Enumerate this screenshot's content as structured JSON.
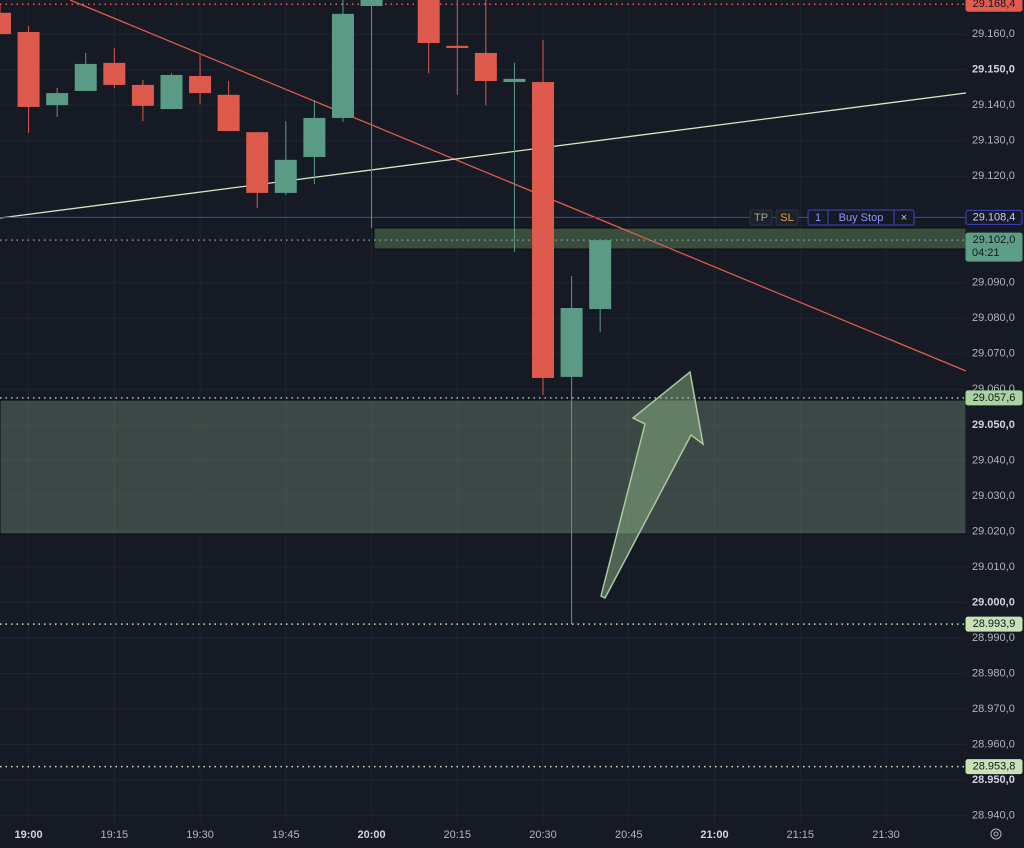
{
  "chart_data": {
    "type": "candlestick",
    "x": [
      "18:55",
      "19:00",
      "19:05",
      "19:10",
      "19:15",
      "19:20",
      "19:25",
      "19:30",
      "19:35",
      "19:40",
      "19:45",
      "19:50",
      "19:55",
      "20:00",
      "20:10",
      "20:15",
      "20:20",
      "20:25",
      "20:30",
      "20:35",
      "20:40"
    ],
    "open": [
      29.166,
      29.1606,
      29.14,
      29.144,
      29.1519,
      29.1457,
      29.1389,
      29.1482,
      29.1429,
      29.1324,
      29.1153,
      29.1254,
      29.1364,
      29.1679,
      29.17,
      29.1567,
      29.1547,
      29.1465,
      29.1465,
      29.0635,
      29.0826
    ],
    "high": [
      29.1684,
      29.1623,
      29.1448,
      29.1547,
      29.1561,
      29.1471,
      29.149,
      29.1541,
      29.1468,
      29.1324,
      29.1355,
      29.1414,
      29.17,
      29.171,
      29.171,
      29.17,
      29.17,
      29.1519,
      29.1583,
      29.0919,
      29.102
    ],
    "low": [
      29.16,
      29.1322,
      29.1367,
      29.144,
      29.1448,
      29.1355,
      29.1389,
      29.1403,
      29.1327,
      29.111,
      29.1147,
      29.1178,
      29.1353,
      29.1054,
      29.149,
      29.1429,
      29.14,
      29.0987,
      29.0584,
      28.9939,
      29.0761
    ],
    "close": [
      29.16,
      29.1395,
      29.1434,
      29.1516,
      29.1457,
      29.1398,
      29.1485,
      29.1434,
      29.1327,
      29.1153,
      29.1246,
      29.1364,
      29.1657,
      29.17,
      29.1575,
      29.1561,
      29.1468,
      29.1474,
      29.0632,
      29.0829,
      29.102
    ],
    "up_color": "#5b9a84",
    "down_color": "#dd5a4c",
    "xlim": [
      "18:55",
      "21:44"
    ],
    "xticks": [
      "19:00",
      "19:15",
      "19:30",
      "19:45",
      "20:00",
      "20:15",
      "20:30",
      "20:45",
      "21:00",
      "21:15",
      "21:30"
    ],
    "ylim": [
      28.9382,
      29.1696
    ],
    "yticks": [
      {
        "value": 29.16,
        "label": "29.160,0"
      },
      {
        "value": 29.15,
        "label": "29.150,0"
      },
      {
        "value": 29.14,
        "label": "29.140,0"
      },
      {
        "value": 29.13,
        "label": "29.130,0"
      },
      {
        "value": 29.12,
        "label": "29.120,0"
      },
      {
        "value": 29.09,
        "label": "29.090,0"
      },
      {
        "value": 29.08,
        "label": "29.080,0"
      },
      {
        "value": 29.07,
        "label": "29.070,0"
      },
      {
        "value": 29.06,
        "label": "29.060,0"
      },
      {
        "value": 29.05,
        "label": "29.050,0"
      },
      {
        "value": 29.04,
        "label": "29.040,0"
      },
      {
        "value": 29.03,
        "label": "29.030,0"
      },
      {
        "value": 29.02,
        "label": "29.020,0"
      },
      {
        "value": 29.01,
        "label": "29.010,0"
      },
      {
        "value": 29.0,
        "label": "29.000,0"
      },
      {
        "value": 28.99,
        "label": "28.990,0"
      },
      {
        "value": 28.98,
        "label": "28.980,0"
      },
      {
        "value": 28.97,
        "label": "28.970,0"
      },
      {
        "value": 28.96,
        "label": "28.960,0"
      },
      {
        "value": 28.95,
        "label": "28.950,0"
      },
      {
        "value": 28.94,
        "label": "28.940,0"
      }
    ],
    "grid": true,
    "price_labels": [
      {
        "value": 29.1684,
        "label": "29.168,4",
        "color": "#e25b4f",
        "style": "dotted"
      },
      {
        "value": 29.1084,
        "label": "29.108,4",
        "color": "#3d45c8",
        "style": "solid"
      },
      {
        "value": 29.102,
        "label": "29.102,0",
        "countdown": "04:21",
        "color": "#5e9e86",
        "style": "dotted"
      },
      {
        "value": 29.0576,
        "label": "29.057,6",
        "color": "#a9d3a0",
        "style": "dotted"
      },
      {
        "value": 28.9939,
        "label": "28.993,9",
        "color": "#c8e2b6",
        "style": "dotted"
      },
      {
        "value": 28.9538,
        "label": "28.953,8",
        "color": "#c8e2b6",
        "style": "dotted"
      }
    ],
    "order": {
      "tp": "TP",
      "sl": "SL",
      "qty": 1,
      "label": "Buy Stop",
      "close": "×"
    }
  }
}
